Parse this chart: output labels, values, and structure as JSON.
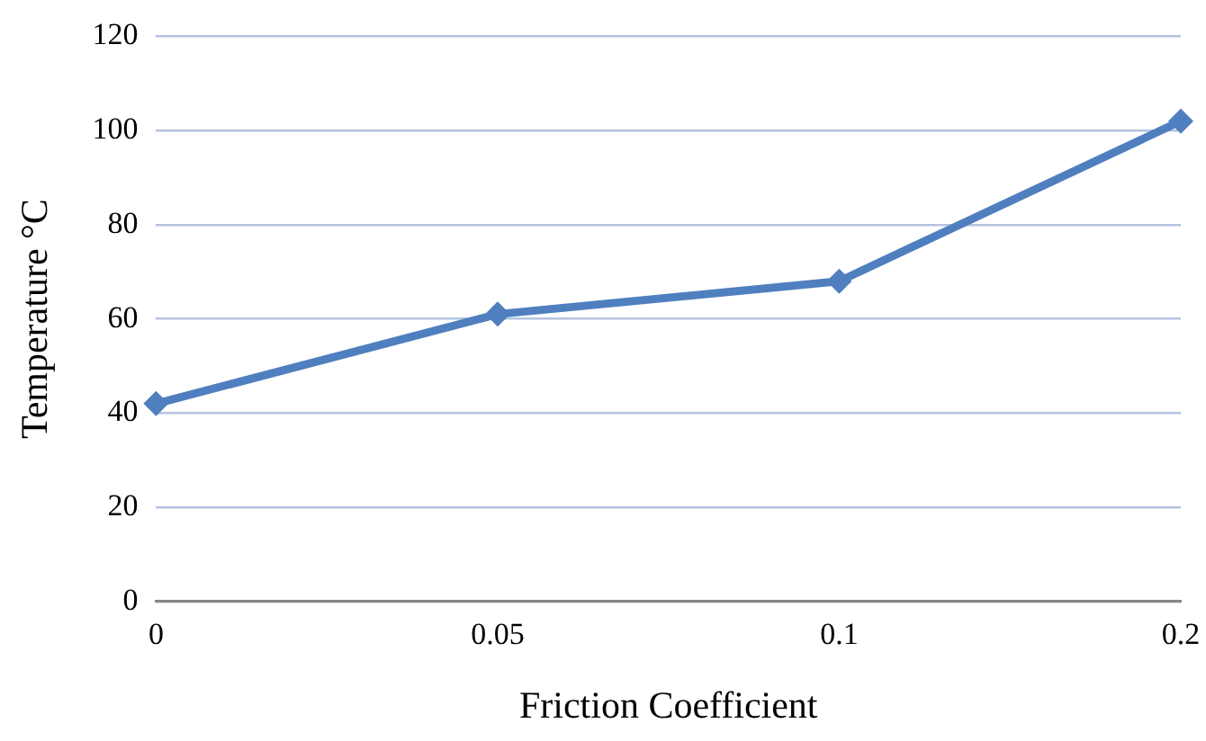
{
  "chart_data": {
    "type": "line",
    "xlabel": "Friction Coefficient",
    "ylabel": "Temperature °C",
    "categories": [
      "0",
      "0.05",
      "0.1",
      "0.2"
    ],
    "series": [
      {
        "color": "#4f7fbe",
        "values": [
          42,
          61,
          68,
          102
        ]
      }
    ],
    "ylim": [
      0,
      120
    ],
    "yticks": [
      0,
      20,
      40,
      60,
      80,
      100,
      120
    ],
    "grid": "y",
    "legend": false,
    "marker": "diamond",
    "line_style": "solid"
  }
}
